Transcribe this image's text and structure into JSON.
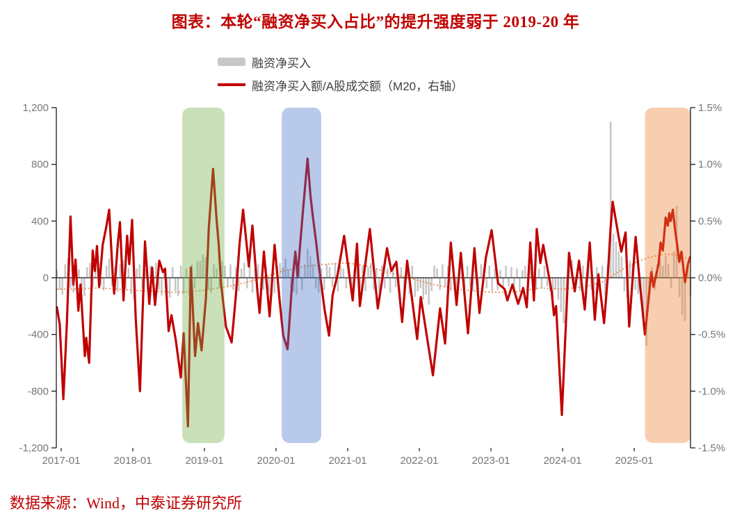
{
  "title": "图表：本轮“融资净买入占比”的提升强度弱于 2019-20 年",
  "footer": "数据来源：Wind，中泰证券研究所",
  "colors": {
    "title_red": "#c00000",
    "line_red": "#c00000",
    "bar_gray": "#c7c7c7",
    "dotted_orange": "#ed7d31",
    "axis_text": "#767676",
    "axis_line": "#1a1a1a",
    "band_green": "#70ad47",
    "band_blue": "#4472c4",
    "band_orange": "#ed7d31"
  },
  "legend": {
    "items": [
      {
        "label": "融资净买入",
        "swatch": "bar",
        "color": "#c7c7c7"
      },
      {
        "label": "融资净买入额/A股成交额（M20，右轴）",
        "swatch": "line",
        "color": "#c00000"
      }
    ]
  },
  "chart_data": {
    "type": "combo",
    "x_range": [
      2016.93,
      2025.79
    ],
    "left_axis": {
      "title": "",
      "ylim": [
        -1200,
        1200
      ],
      "ticks": [
        1200,
        800,
        400,
        0,
        -400,
        -800,
        -1200
      ],
      "labels": [
        "1,200",
        "800",
        "400",
        "0",
        "-400",
        "-800",
        "-1,200"
      ]
    },
    "right_axis": {
      "title": "",
      "ylim": [
        -1.5,
        1.5
      ],
      "ticks": [
        1.5,
        1.0,
        0.5,
        0.0,
        -0.5,
        -1.0,
        -1.5
      ],
      "labels": [
        "1.5%",
        "1.0%",
        "0.5%",
        "0.0%",
        "-0.5%",
        "-1.0%",
        "-1.5%"
      ]
    },
    "x_axis": {
      "ticks": [
        2017,
        2018,
        2019,
        2020,
        2021,
        2022,
        2023,
        2024,
        2025
      ],
      "labels": [
        "2017-01",
        "2018-01",
        "2019-01",
        "2020-01",
        "2021-01",
        "2022-01",
        "2023-01",
        "2024-01",
        "2025-01"
      ]
    },
    "highlight_bands": [
      {
        "from": 2018.69,
        "to": 2019.28,
        "color": "#70ad47",
        "opacity": 0.38
      },
      {
        "from": 2020.08,
        "to": 2020.63,
        "color": "#4472c4",
        "opacity": 0.38
      },
      {
        "from": 2025.15,
        "to": 2025.79,
        "color": "#ed7d31",
        "opacity": 0.38
      }
    ],
    "series": [
      {
        "name": "融资净买入",
        "type": "bar",
        "axis": "left",
        "x_start": 2016.94,
        "x_step": 0.03846,
        "values": [
          55,
          -85,
          -120,
          95,
          140,
          -70,
          -105,
          85,
          60,
          -95,
          -130,
          75,
          105,
          -65,
          65,
          115,
          -55,
          -90,
          85,
          135,
          -60,
          75,
          -100,
          95,
          125,
          -80,
          70,
          -115,
          -150,
          65,
          95,
          -75,
          55,
          -90,
          85,
          -65,
          105,
          -85,
          -125,
          60,
          -105,
          -140,
          75,
          -95,
          -130,
          85,
          -115,
          65,
          -125,
          95,
          -75,
          115,
          120,
          165,
          145,
          -85,
          -105,
          95,
          65,
          -75,
          115,
          85,
          -65,
          95,
          -85,
          75,
          -95,
          65,
          105,
          -75,
          85,
          -105,
          65,
          95,
          -65,
          -85,
          75,
          -95,
          -135,
          -110,
          85,
          105,
          75,
          135,
          60,
          -70,
          -100,
          -120,
          65,
          -85,
          95,
          205,
          150,
          95,
          -75,
          -105,
          65,
          -85,
          95,
          75,
          -65,
          105,
          -95,
          85,
          65,
          -75,
          95,
          -105,
          60,
          115,
          -70,
          85,
          -95,
          75,
          105,
          -85,
          65,
          -95,
          85,
          -75,
          65,
          -105,
          95,
          -65,
          -85,
          75,
          -95,
          65,
          -115,
          85,
          -135,
          -95,
          -75,
          -155,
          -120,
          -190,
          -95,
          85,
          65,
          -85,
          95,
          -65,
          85,
          -95,
          75,
          -105,
          65,
          95,
          -75,
          85,
          -65,
          -95,
          75,
          -85,
          95,
          65,
          -75,
          85,
          -95,
          65,
          -85,
          55,
          -75,
          85,
          -60,
          75,
          -85,
          65,
          -95,
          55,
          85,
          -65,
          75,
          -55,
          -85,
          65,
          -75,
          85,
          -60,
          -95,
          -125,
          -85,
          -155,
          -240,
          -320,
          -180,
          95,
          125,
          -85,
          65,
          -95,
          85,
          -70,
          95,
          -85,
          -115,
          75,
          -95,
          85,
          -125,
          95,
          1100,
          310,
          255,
          185,
          150,
          -95,
          -145,
          120,
          95,
          -85,
          -115,
          -165,
          -280,
          -480,
          -95,
          75,
          -85,
          95,
          125,
          85,
          155,
          95,
          -75,
          185,
          505,
          -135,
          -265,
          -305,
          85,
          -130
        ]
      },
      {
        "name": "融资净买入额/A股成交额（M20，右轴）",
        "type": "line",
        "axis": "right",
        "unit": "%",
        "points": [
          [
            2016.94,
            -0.26
          ],
          [
            2016.98,
            -0.41
          ],
          [
            2017.03,
            -1.07
          ],
          [
            2017.08,
            -0.4
          ],
          [
            2017.13,
            0.54
          ],
          [
            2017.17,
            -0.06
          ],
          [
            2017.2,
            0.16
          ],
          [
            2017.24,
            -0.29
          ],
          [
            2017.27,
            -0.06
          ],
          [
            2017.33,
            -0.69
          ],
          [
            2017.35,
            -0.53
          ],
          [
            2017.39,
            -0.75
          ],
          [
            2017.44,
            0.24
          ],
          [
            2017.47,
            0.06
          ],
          [
            2017.5,
            0.28
          ],
          [
            2017.53,
            -0.08
          ],
          [
            2017.58,
            0.29
          ],
          [
            2017.63,
            0.45
          ],
          [
            2017.67,
            0.6
          ],
          [
            2017.72,
            0.01
          ],
          [
            2017.74,
            -0.14
          ],
          [
            2017.79,
            0.3
          ],
          [
            2017.82,
            0.49
          ],
          [
            2017.87,
            -0.2
          ],
          [
            2017.92,
            0.37
          ],
          [
            2017.95,
            0.12
          ],
          [
            2017.99,
            0.51
          ],
          [
            2018.04,
            -0.35
          ],
          [
            2018.1,
            -1.0
          ],
          [
            2018.17,
            0.32
          ],
          [
            2018.23,
            -0.23
          ],
          [
            2018.27,
            0.09
          ],
          [
            2018.31,
            -0.24
          ],
          [
            2018.37,
            0.15
          ],
          [
            2018.42,
            0.05
          ],
          [
            2018.45,
            0.08
          ],
          [
            2018.5,
            -0.47
          ],
          [
            2018.54,
            -0.33
          ],
          [
            2018.6,
            -0.55
          ],
          [
            2018.67,
            -0.88
          ],
          [
            2018.71,
            -0.49
          ],
          [
            2018.77,
            -1.31
          ],
          [
            2018.81,
            0.09
          ],
          [
            2018.87,
            -0.69
          ],
          [
            2018.91,
            -0.4
          ],
          [
            2018.96,
            -0.64
          ],
          [
            2019.02,
            -0.18
          ],
          [
            2019.06,
            0.43
          ],
          [
            2019.12,
            0.96
          ],
          [
            2019.17,
            0.51
          ],
          [
            2019.2,
            0.29
          ],
          [
            2019.23,
            -0.04
          ],
          [
            2019.3,
            -0.43
          ],
          [
            2019.38,
            -0.57
          ],
          [
            2019.44,
            -0.15
          ],
          [
            2019.49,
            0.3
          ],
          [
            2019.54,
            0.6
          ],
          [
            2019.62,
            0.1
          ],
          [
            2019.67,
            0.46
          ],
          [
            2019.74,
            -0.12
          ],
          [
            2019.77,
            -0.31
          ],
          [
            2019.83,
            0.23
          ],
          [
            2019.91,
            -0.34
          ],
          [
            2019.98,
            0.29
          ],
          [
            2020.05,
            -0.2
          ],
          [
            2020.1,
            -0.51
          ],
          [
            2020.16,
            -0.63
          ],
          [
            2020.22,
            -0.08
          ],
          [
            2020.27,
            0.23
          ],
          [
            2020.3,
            0.01
          ],
          [
            2020.37,
            0.55
          ],
          [
            2020.44,
            1.05
          ],
          [
            2020.48,
            0.73
          ],
          [
            2020.51,
            0.56
          ],
          [
            2020.56,
            0.31
          ],
          [
            2020.59,
            0.14
          ],
          [
            2020.68,
            -0.29
          ],
          [
            2020.74,
            -0.51
          ],
          [
            2020.79,
            -0.15
          ],
          [
            2020.86,
            0.03
          ],
          [
            2020.95,
            0.37
          ],
          [
            2021.07,
            -0.2
          ],
          [
            2021.13,
            0.3
          ],
          [
            2021.17,
            -0.25
          ],
          [
            2021.31,
            0.43
          ],
          [
            2021.42,
            -0.27
          ],
          [
            2021.55,
            0.26
          ],
          [
            2021.61,
            0.06
          ],
          [
            2021.68,
            0.14
          ],
          [
            2021.76,
            -0.39
          ],
          [
            2021.83,
            0.15
          ],
          [
            2021.97,
            -0.54
          ],
          [
            2022.02,
            -0.17
          ],
          [
            2022.19,
            -0.86
          ],
          [
            2022.29,
            -0.27
          ],
          [
            2022.36,
            -0.58
          ],
          [
            2022.44,
            0.31
          ],
          [
            2022.52,
            -0.24
          ],
          [
            2022.58,
            0.22
          ],
          [
            2022.68,
            -0.49
          ],
          [
            2022.77,
            0.26
          ],
          [
            2022.84,
            -0.31
          ],
          [
            2022.93,
            0.18
          ],
          [
            2023.01,
            0.42
          ],
          [
            2023.1,
            -0.05
          ],
          [
            2023.19,
            -0.1
          ],
          [
            2023.23,
            -0.2
          ],
          [
            2023.3,
            -0.06
          ],
          [
            2023.38,
            -0.23
          ],
          [
            2023.45,
            -0.09
          ],
          [
            2023.5,
            -0.26
          ],
          [
            2023.55,
            0.31
          ],
          [
            2023.6,
            -0.2
          ],
          [
            2023.64,
            0.43
          ],
          [
            2023.69,
            0.13
          ],
          [
            2023.73,
            0.29
          ],
          [
            2023.85,
            -0.13
          ],
          [
            2023.88,
            -0.33
          ],
          [
            2023.91,
            -0.25
          ],
          [
            2023.99,
            -1.21
          ],
          [
            2024.09,
            0.22
          ],
          [
            2024.17,
            -0.12
          ],
          [
            2024.23,
            0.15
          ],
          [
            2024.31,
            -0.28
          ],
          [
            2024.38,
            0.31
          ],
          [
            2024.45,
            -0.37
          ],
          [
            2024.5,
            0.03
          ],
          [
            2024.58,
            -0.4
          ],
          [
            2024.63,
            0.0
          ],
          [
            2024.67,
            0.43
          ],
          [
            2024.7,
            0.67
          ],
          [
            2024.77,
            0.41
          ],
          [
            2024.82,
            0.23
          ],
          [
            2024.88,
            0.4
          ],
          [
            2024.93,
            -0.43
          ],
          [
            2025.02,
            0.36
          ],
          [
            2025.08,
            -0.05
          ],
          [
            2025.15,
            -0.5
          ],
          [
            2025.24,
            0.05
          ],
          [
            2025.27,
            -0.08
          ],
          [
            2025.34,
            0.12
          ],
          [
            2025.37,
            0.31
          ],
          [
            2025.4,
            0.24
          ],
          [
            2025.44,
            0.53
          ],
          [
            2025.47,
            0.46
          ],
          [
            2025.49,
            0.57
          ],
          [
            2025.51,
            0.5
          ],
          [
            2025.54,
            0.6
          ],
          [
            2025.57,
            0.43
          ],
          [
            2025.6,
            0.29
          ],
          [
            2025.63,
            0.14
          ],
          [
            2025.66,
            0.23
          ],
          [
            2025.71,
            -0.04
          ],
          [
            2025.75,
            0.12
          ],
          [
            2025.78,
            0.18
          ]
        ]
      },
      {
        "name": "dotted-reference",
        "type": "dotted-line",
        "axis": "right",
        "unit": "%",
        "points": [
          [
            2016.94,
            -0.1
          ],
          [
            2017.2,
            -0.1
          ],
          [
            2017.5,
            -0.09
          ],
          [
            2017.8,
            -0.1
          ],
          [
            2018.0,
            -0.11
          ],
          [
            2018.3,
            -0.12
          ],
          [
            2018.6,
            -0.13
          ],
          [
            2018.8,
            -0.12
          ],
          [
            2019.0,
            -0.11
          ],
          [
            2019.3,
            -0.08
          ],
          [
            2019.6,
            -0.04
          ],
          [
            2019.9,
            0.02
          ],
          [
            2020.1,
            0.06
          ],
          [
            2020.4,
            0.1
          ],
          [
            2020.7,
            0.12
          ],
          [
            2021.0,
            0.13
          ],
          [
            2021.3,
            0.1
          ],
          [
            2021.6,
            0.04
          ],
          [
            2021.9,
            -0.01
          ],
          [
            2022.2,
            -0.06
          ],
          [
            2022.5,
            -0.1
          ],
          [
            2022.8,
            -0.12
          ],
          [
            2023.1,
            -0.13
          ],
          [
            2023.4,
            -0.12
          ],
          [
            2023.7,
            -0.09
          ],
          [
            2024.0,
            -0.1
          ],
          [
            2024.3,
            -0.08
          ],
          [
            2024.55,
            -0.04
          ],
          [
            2024.8,
            0.06
          ],
          [
            2025.0,
            0.13
          ],
          [
            2025.2,
            0.18
          ],
          [
            2025.45,
            0.21
          ],
          [
            2025.6,
            0.2
          ],
          [
            2025.78,
            0.16
          ]
        ]
      }
    ]
  }
}
